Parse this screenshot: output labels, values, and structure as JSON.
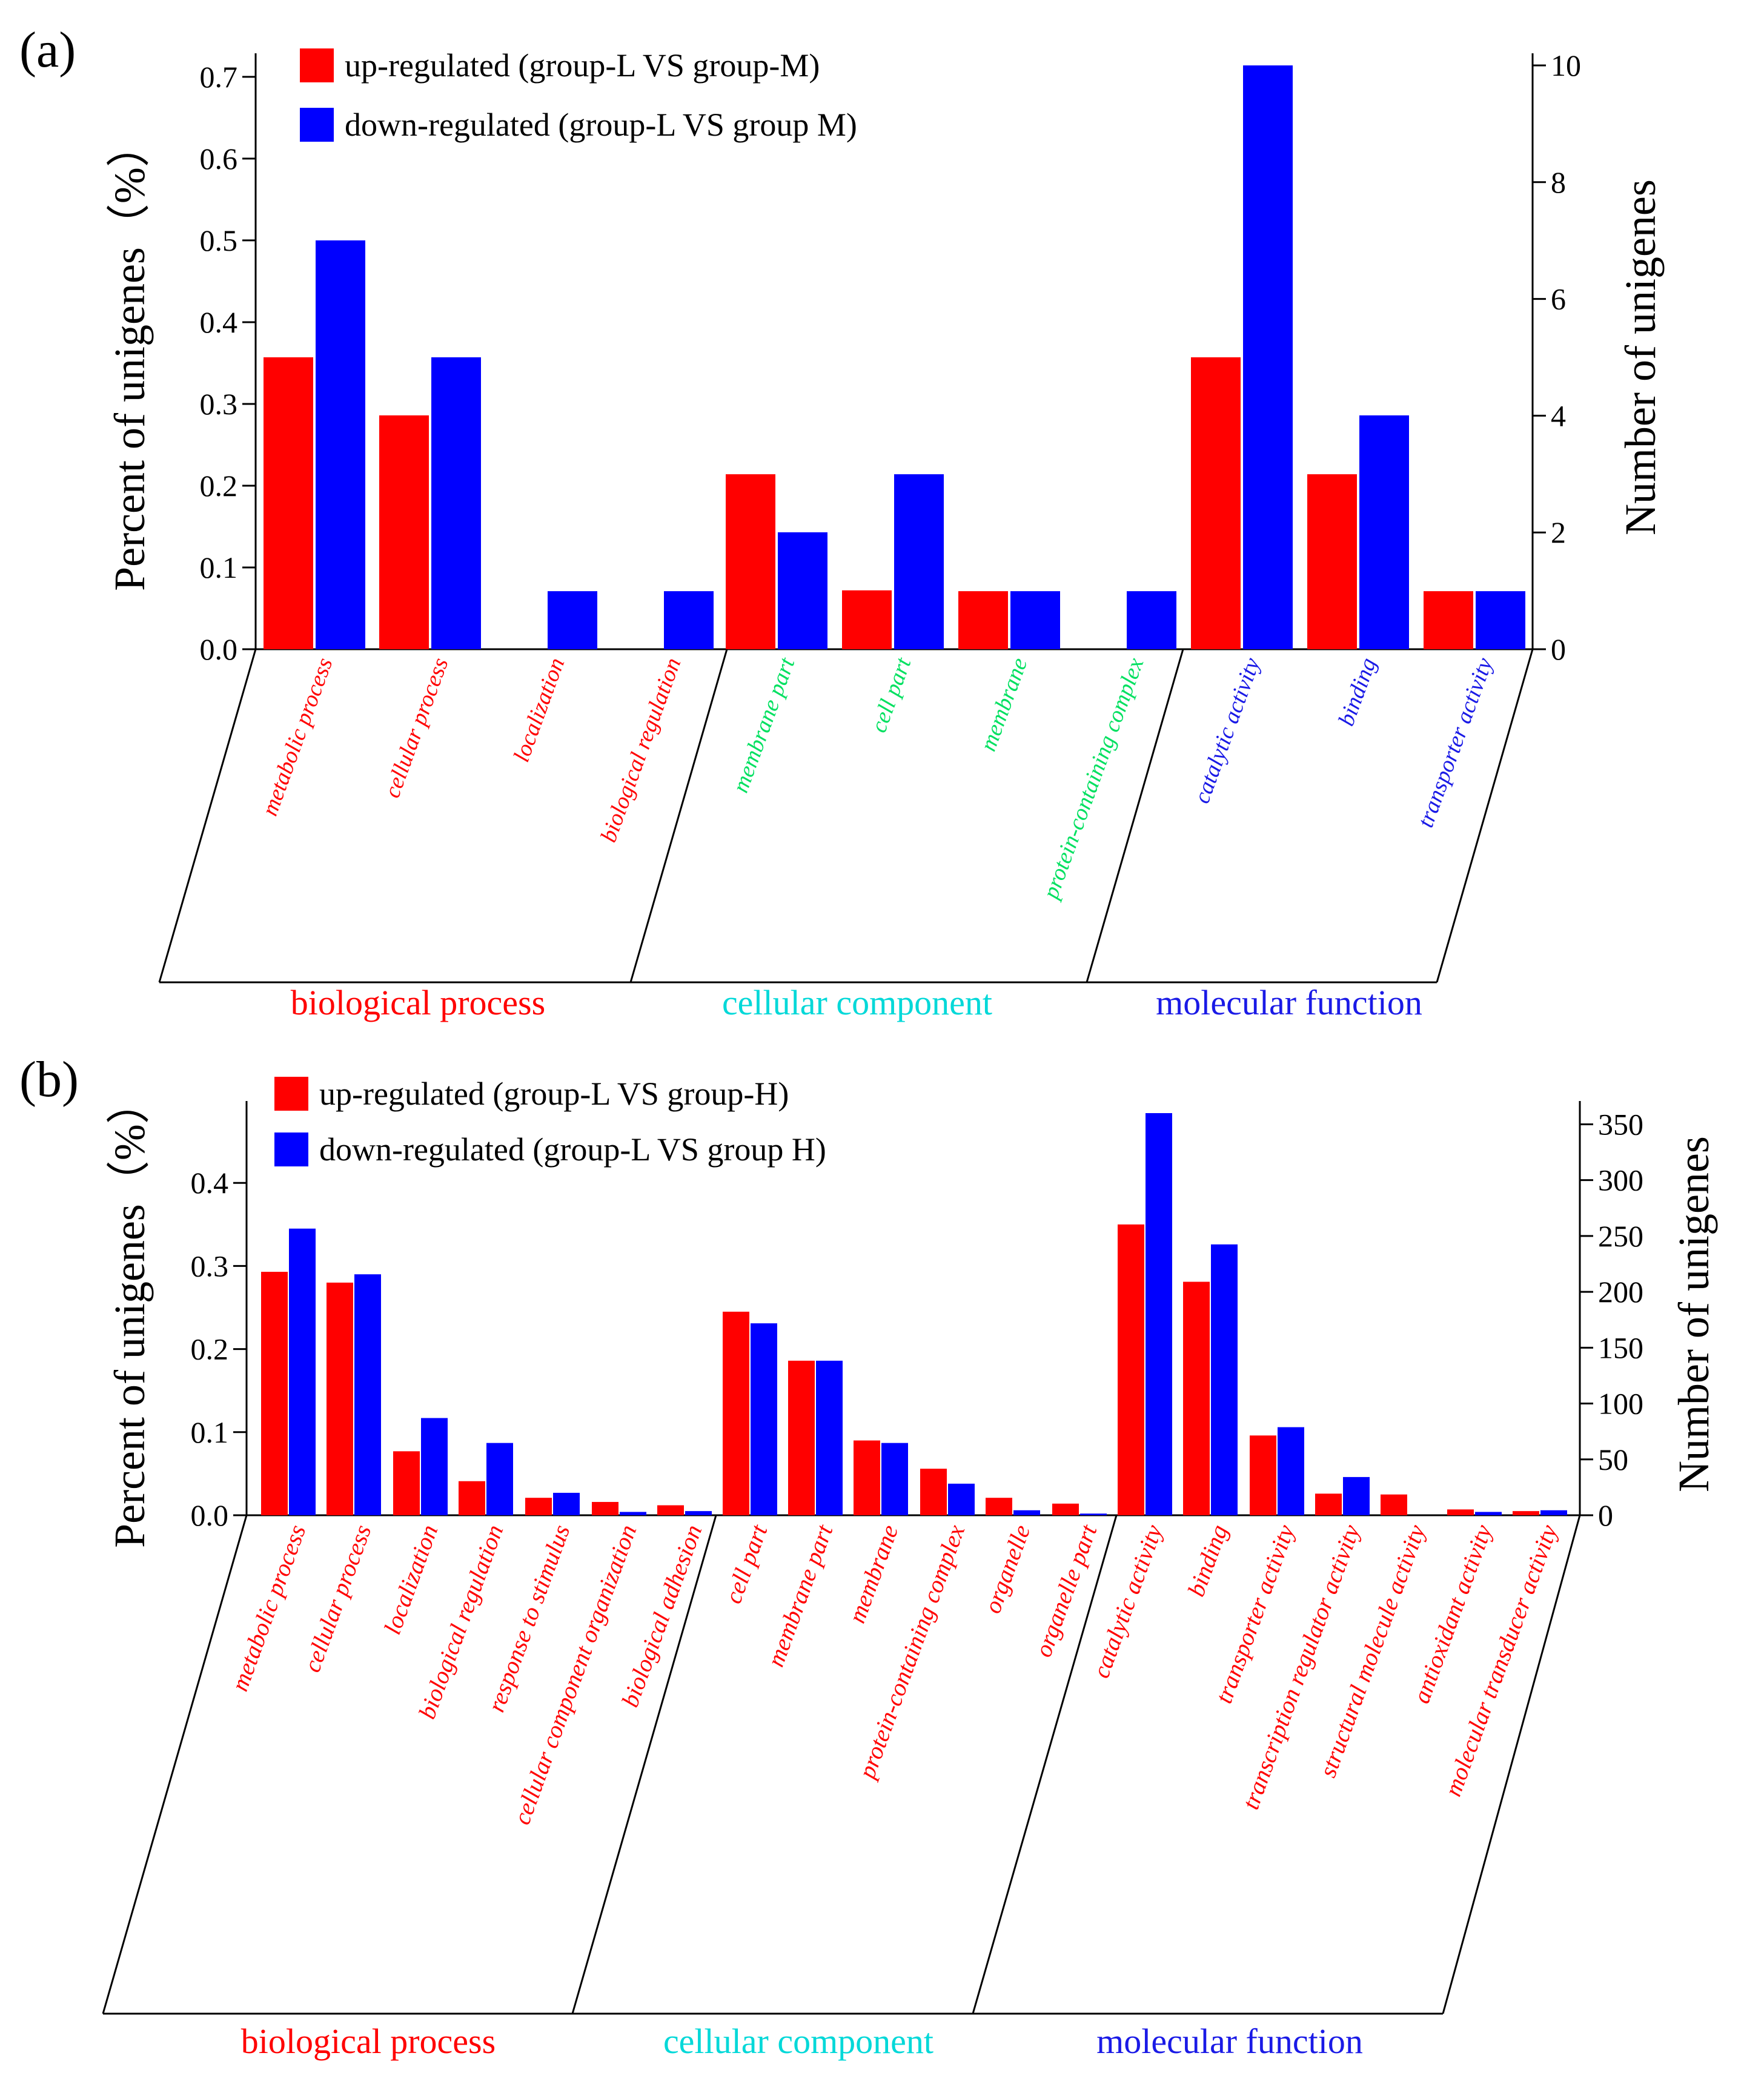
{
  "chart_data": [
    {
      "panel_label": "(a)",
      "type": "bar",
      "categories": [
        "metabolic process",
        "cellular process",
        "localization",
        "biological regulation",
        "membrane part",
        "cell part",
        "membrane",
        "protein-containing complex",
        "catalytic activity",
        "binding",
        "transporter activity"
      ],
      "category_groups": [
        "biological process",
        "biological process",
        "biological process",
        "biological process",
        "cellular component",
        "cellular component",
        "cellular component",
        "cellular component",
        "molecular function",
        "molecular function",
        "molecular function"
      ],
      "series": [
        {
          "name": "up-regulated (group-L VS group-M)",
          "color": "#ff0000",
          "values": [
            0.357,
            0.286,
            0,
            0,
            0.214,
            0.072,
            0.071,
            0,
            0.357,
            0.214,
            0.071
          ]
        },
        {
          "name": "down-regulated (group-L VS group M)",
          "color": "#0000ff",
          "values": [
            0.5,
            0.357,
            0.071,
            0.071,
            0.143,
            0.214,
            0.071,
            0.071,
            0.714,
            0.286,
            0.071
          ]
        }
      ],
      "ylabel": "Percent of unigenes（%）",
      "y2label": "Number of unigenes",
      "ylim": [
        0,
        0.714
      ],
      "yticks": [
        "0.0",
        "0.1",
        "0.2",
        "0.3",
        "0.4",
        "0.5",
        "0.6",
        "0.7"
      ],
      "y2lim": [
        0,
        10
      ],
      "y2ticks": [
        "0",
        "2",
        "4",
        "6",
        "8",
        "10"
      ],
      "groups": [
        {
          "name": "biological process",
          "color": "#ff0000"
        },
        {
          "name": "cellular component",
          "color": "#00d8d8"
        },
        {
          "name": "molecular function",
          "color": "#1a1ae6"
        }
      ],
      "label_colors": {
        "biological process": "#ff0000",
        "cellular component": "#00e060",
        "molecular function": "#1a1ae6"
      },
      "legend_position": "top-left"
    },
    {
      "panel_label": "(b)",
      "type": "bar",
      "categories": [
        "metabolic process",
        "cellular process",
        "localization",
        "biological regulation",
        "response to stimulus",
        "cellular component organization",
        "biological adhesion",
        "cell part",
        "membrane part",
        "membrane",
        "protein-containing complex",
        "organelle",
        "organelle part",
        "catalytic activity",
        "binding",
        "transporter activity",
        "transcription regulator activity",
        "structural molecule activity",
        "antioxidant activity",
        "molecular transducer activity"
      ],
      "category_groups": [
        "biological process",
        "biological process",
        "biological process",
        "biological process",
        "biological process",
        "biological process",
        "biological process",
        "cellular component",
        "cellular component",
        "cellular component",
        "cellular component",
        "cellular component",
        "cellular component",
        "molecular function",
        "molecular function",
        "molecular function",
        "molecular function",
        "molecular function",
        "molecular function",
        "molecular function"
      ],
      "series": [
        {
          "name": "up-regulated (group-L VS group-H)",
          "color": "#ff0000",
          "values": [
            0.293,
            0.28,
            0.077,
            0.041,
            0.021,
            0.016,
            0.012,
            0.245,
            0.186,
            0.09,
            0.056,
            0.021,
            0.014,
            0.35,
            0.281,
            0.096,
            0.026,
            0.025,
            0.007,
            0.005
          ]
        },
        {
          "name": "down-regulated (group-L VS group H)",
          "color": "#0000ff",
          "values": [
            0.345,
            0.29,
            0.117,
            0.087,
            0.027,
            0.004,
            0.005,
            0.231,
            0.186,
            0.087,
            0.038,
            0.006,
            0.002,
            0.484,
            0.326,
            0.106,
            0.046,
            0,
            0.004,
            0.006
          ]
        }
      ],
      "ylabel": "Percent of unigenes（%）",
      "y2label": "Number of unigenes",
      "ylim": [
        0,
        0.484
      ],
      "yticks": [
        "0.0",
        "0.1",
        "0.2",
        "0.3",
        "0.4"
      ],
      "y2lim": [
        0,
        360
      ],
      "y2ticks": [
        "0",
        "50",
        "100",
        "150",
        "200",
        "250",
        "300",
        "350"
      ],
      "groups": [
        {
          "name": "biological process",
          "color": "#ff0000"
        },
        {
          "name": "cellular component",
          "color": "#00d8d8"
        },
        {
          "name": "molecular function",
          "color": "#1a1ae6"
        }
      ],
      "label_colors": {
        "biological process": "#ff0000",
        "cellular component": "#ff0000",
        "molecular function": "#ff0000"
      },
      "legend_position": "top-left"
    }
  ]
}
